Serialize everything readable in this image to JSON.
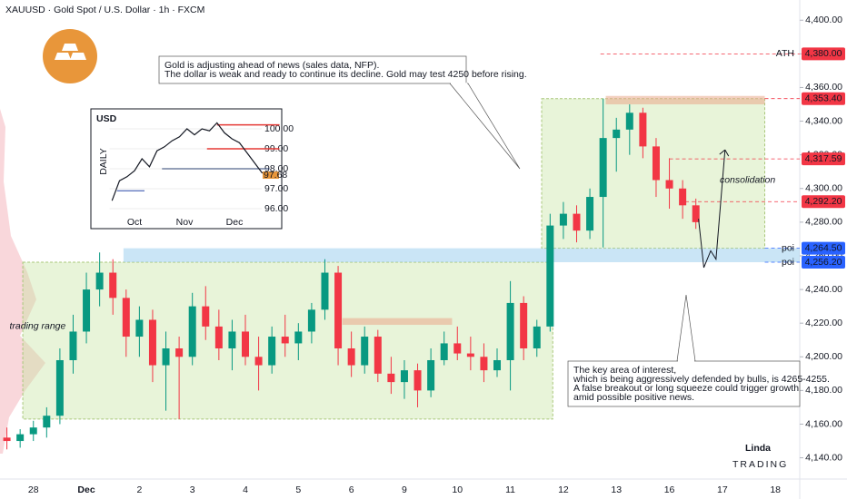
{
  "chart_data": [
    {
      "type": "candlestick",
      "title": "XAUUSD · Gold Spot / U.S. Dollar · 1h · FXCM",
      "xlim": [
        -0.63,
        14.46
      ],
      "ylim": [
        4129,
        4412
      ],
      "categories": [
        "28",
        "Dec",
        "2",
        "3",
        "4",
        "5",
        "6",
        "9",
        "10",
        "11",
        "12",
        "13",
        "16",
        "17",
        "18"
      ],
      "yticks": [
        {
          "value": 4140,
          "label": "4,140.00"
        },
        {
          "value": 4160,
          "label": "4,160.00"
        },
        {
          "value": 4180,
          "label": "4,180.00"
        },
        {
          "value": 4200,
          "label": "4,200.00"
        },
        {
          "value": 4220,
          "label": "4,220.00"
        },
        {
          "value": 4240,
          "label": "4,240.00"
        },
        {
          "value": 4260,
          "label": "4,260.00"
        },
        {
          "value": 4280,
          "label": "4,280.00"
        },
        {
          "value": 4300,
          "label": "4,300.00"
        },
        {
          "value": 4320,
          "label": "4,320.00"
        },
        {
          "value": 4340,
          "label": "4,340.00"
        },
        {
          "value": 4360,
          "label": "4,360.00"
        },
        {
          "value": 4380,
          "label": "4,380.00"
        },
        {
          "value": 4400,
          "label": "4,400.00"
        }
      ],
      "up_color": "#089981",
      "down_color": "#f23645",
      "x": [
        -0.5,
        -0.25,
        0,
        0.25,
        0.5,
        0.75,
        1,
        1.25,
        1.5,
        1.75,
        2,
        2.25,
        2.5,
        2.75,
        3,
        3.25,
        3.5,
        3.75,
        4,
        4.25,
        4.5,
        4.75,
        5,
        5.25,
        5.5,
        5.75,
        6,
        6.25,
        6.5,
        6.75,
        7,
        7.25,
        7.5,
        7.75,
        8,
        8.25,
        8.5,
        8.75,
        9,
        9.25,
        9.5,
        9.75,
        10,
        10.25,
        10.5,
        10.75,
        11,
        11.25,
        11.5,
        11.75,
        12,
        12.25,
        12.5
      ],
      "open": [
        4152,
        4150,
        4154,
        4158,
        4165,
        4198,
        4215,
        4240,
        4250,
        4235,
        4212,
        4222,
        4195,
        4205,
        4200,
        4230,
        4218,
        4205,
        4215,
        4200,
        4195,
        4212,
        4208,
        4215,
        4228,
        4250,
        4205,
        4195,
        4212,
        4190,
        4185,
        4192,
        4180,
        4198,
        4208,
        4202,
        4200,
        4192,
        4198,
        4232,
        4205,
        4218,
        4278,
        4285,
        4275,
        4295,
        4330,
        4335,
        4345,
        4325,
        4305,
        4300,
        4290
      ],
      "high": [
        4158,
        4157,
        4162,
        4170,
        4205,
        4225,
        4250,
        4262,
        4258,
        4240,
        4230,
        4228,
        4215,
        4212,
        4238,
        4242,
        4228,
        4222,
        4225,
        4212,
        4218,
        4225,
        4220,
        4232,
        4258,
        4254,
        4215,
        4218,
        4216,
        4200,
        4198,
        4196,
        4205,
        4215,
        4218,
        4212,
        4208,
        4205,
        4245,
        4236,
        4222,
        4285,
        4292,
        4290,
        4300,
        4353.4,
        4342,
        4350,
        4348,
        4330,
        4318,
        4305,
        4294
      ],
      "low": [
        4145,
        4146,
        4150,
        4152,
        4160,
        4190,
        4208,
        4230,
        4225,
        4200,
        4200,
        4185,
        4168,
        4163,
        4195,
        4210,
        4198,
        4192,
        4195,
        4180,
        4190,
        4200,
        4198,
        4208,
        4222,
        4195,
        4188,
        4190,
        4185,
        4178,
        4175,
        4170,
        4176,
        4195,
        4198,
        4192,
        4185,
        4188,
        4180,
        4198,
        4200,
        4215,
        4270,
        4268,
        4270,
        4265,
        4310,
        4320,
        4318,
        4295,
        4288,
        4282,
        4276
      ],
      "close": [
        4150,
        4154,
        4158,
        4165,
        4198,
        4215,
        4240,
        4250,
        4235,
        4212,
        4222,
        4195,
        4205,
        4200,
        4230,
        4218,
        4205,
        4215,
        4200,
        4195,
        4212,
        4208,
        4215,
        4228,
        4250,
        4205,
        4195,
        4212,
        4190,
        4185,
        4192,
        4180,
        4198,
        4208,
        4202,
        4200,
        4192,
        4198,
        4232,
        4205,
        4218,
        4278,
        4285,
        4275,
        4295,
        4330,
        4335,
        4345,
        4325,
        4305,
        4300,
        4290,
        4280
      ],
      "zones": [
        {
          "from": -0.2,
          "to": 9.8,
          "top": 4256.2,
          "bottom": 4163,
          "color": "#c5e3a0"
        },
        {
          "from": 9.59,
          "to": 13.8,
          "top": 4353.4,
          "bottom": 4264.5,
          "color": "#c5e3a0"
        },
        {
          "from": 1.7,
          "to": 14.46,
          "top": 4264.5,
          "bottom": 4256.2,
          "color": "#9fd0ee"
        },
        {
          "from": 10.8,
          "to": 13.8,
          "top": 4355,
          "bottom": 4350,
          "color": "#eaa78a"
        },
        {
          "from": 5.83,
          "to": 7.9,
          "top": 4223,
          "bottom": 4219,
          "color": "#eaa78a"
        }
      ],
      "levels": [
        {
          "value": 4380,
          "label": "4,380.00",
          "from": 10.7,
          "color": "#f23645",
          "name": "ATH"
        },
        {
          "value": 4353.4,
          "label": "4,353.40",
          "from": 13.8,
          "color": "#f23645"
        },
        {
          "value": 4317.59,
          "label": "4,317.59",
          "from": 12.0,
          "color": "#f23645"
        },
        {
          "value": 4292.2,
          "label": "4,292.20",
          "from": 12.3,
          "color": "#f23645"
        },
        {
          "value": 4264.5,
          "label": "4,264.50",
          "from": 13.8,
          "color": "#2962ff",
          "name": "poi"
        },
        {
          "value": 4256.2,
          "label": "4,256.20",
          "from": 13.8,
          "color": "#2962ff",
          "name": "poi"
        }
      ],
      "projection": {
        "x": [
          12.55,
          12.65,
          12.78,
          12.88,
          13.05
        ],
        "values": [
          4282,
          4253,
          4263,
          4258,
          4323
        ]
      },
      "notes": [
        {
          "text": "trading range",
          "x": -0.45,
          "value": 4218
        },
        {
          "text": "consolidation",
          "x": 12.95,
          "value": 4305
        }
      ],
      "annotations": [
        {
          "lines": [
            "Gold is adjusting ahead of news (sales data, NFP).",
            "The dollar is weak and ready to continue its decline. Gold may test 4250 before rising."
          ]
        },
        {
          "lines": [
            "The key area of interest,",
            "which is being aggressively defended by bulls, is 4265-4255.",
            "A false breakout or long squeeze could trigger growth",
            "amid possible positive news."
          ]
        }
      ]
    },
    {
      "type": "line",
      "title": "USD",
      "subtitle": "DAILY",
      "categories": [
        "Oct",
        "Nov",
        "Dec"
      ],
      "xlim": [
        -0.5,
        2.9
      ],
      "ylim": [
        95,
        101
      ],
      "yticks": [
        {
          "value": 96,
          "label": "96.00"
        },
        {
          "value": 97,
          "label": "97.00"
        },
        {
          "value": 98,
          "label": "98.00"
        },
        {
          "value": 99,
          "label": "99.00"
        },
        {
          "value": 100,
          "label": "100.00"
        }
      ],
      "color": "#131722",
      "x": [
        -0.45,
        -0.3,
        -0.15,
        0,
        0.15,
        0.3,
        0.45,
        0.6,
        0.75,
        0.9,
        1.05,
        1.2,
        1.35,
        1.5,
        1.65,
        1.8,
        1.95,
        2.1,
        2.25,
        2.4,
        2.55,
        2.7
      ],
      "values": [
        96.4,
        97.4,
        97.6,
        97.9,
        98.5,
        98.1,
        98.9,
        99.1,
        99.4,
        99.6,
        100,
        99.7,
        100,
        99.9,
        100.3,
        99.8,
        99.5,
        99.3,
        98.8,
        98.3,
        97.8,
        97.7
      ],
      "last": {
        "value": 97.68,
        "label": "97.68"
      },
      "levels": [
        {
          "value": 100.2,
          "from": 1.65,
          "to": 2.9,
          "color": "#e53935"
        },
        {
          "value": 99,
          "from": 1.45,
          "to": 2.9,
          "color": "#e53935"
        },
        {
          "value": 98,
          "from": 0.55,
          "to": 2.7,
          "color": "#2a3f6f"
        },
        {
          "value": 96.9,
          "from": -0.35,
          "to": 0.2,
          "color": "#2949a8"
        }
      ]
    }
  ],
  "brand": "Linda",
  "brand_sub": "TRADING"
}
